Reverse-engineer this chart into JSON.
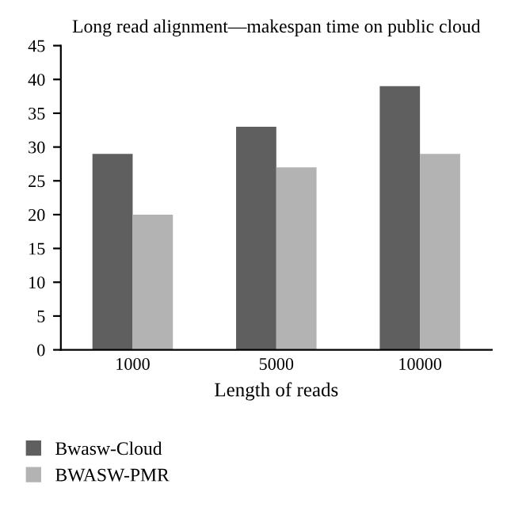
{
  "chart_data": {
    "type": "bar",
    "title": "Long read alignment—makespan time on public cloud",
    "xlabel": "Length of reads",
    "categories": [
      "1000",
      "5000",
      "10000"
    ],
    "series": [
      {
        "name": "Bwasw-Cloud",
        "color": "#5f5f5f",
        "values": [
          29,
          33,
          39
        ]
      },
      {
        "name": "BWASW-PMR",
        "color": "#b3b3b3",
        "values": [
          20,
          27,
          29
        ]
      }
    ],
    "ylim": [
      0,
      45
    ],
    "yticks": [
      0,
      5,
      10,
      15,
      20,
      25,
      30,
      35,
      40,
      45
    ],
    "grid": false,
    "legend": "bottom left"
  }
}
